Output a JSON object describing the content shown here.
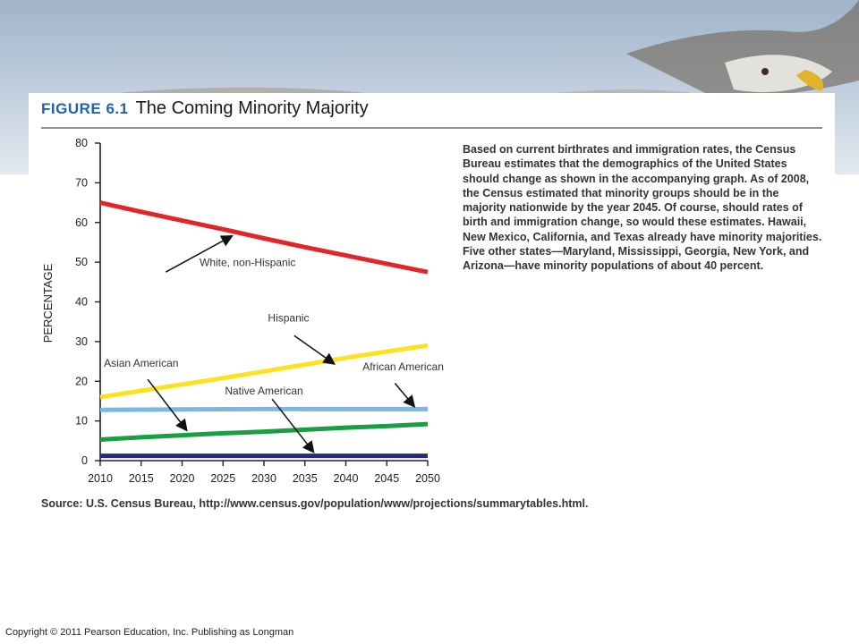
{
  "figure": {
    "number": "FIGURE 6.1",
    "title": "The Coming Minority Majority",
    "description": "Based on current birthrates and immigration rates, the Census Bureau estimates that the demographics of the United States should change as shown in the accompanying graph. As of 2008, the Census estimated that minority groups should be in the majority nationwide by the year 2045. Of course, should rates of birth and immigration change, so would these estimates. Hawaii, New Mexico, California, and Texas already have minority majorities. Five other states—Maryland, Mississippi, Georgia, New York, and Arizona—have minority populations of about 40 percent.",
    "source": "Source: U.S. Census Bureau, http://www.census.gov/population/www/projections/summarytables.html."
  },
  "copyright": "Copyright © 2011 Pearson Education, Inc. Publishing as Longman",
  "chart_data": {
    "type": "line",
    "ylabel": "PERCENTAGE",
    "xlabel": "",
    "x": [
      2010,
      2015,
      2020,
      2025,
      2030,
      2035,
      2040,
      2045,
      2050
    ],
    "xlim": [
      2010,
      2050
    ],
    "ylim": [
      0,
      80
    ],
    "yticks": [
      0,
      10,
      20,
      30,
      40,
      50,
      60,
      70,
      80
    ],
    "grid": false,
    "series": [
      {
        "name": "White, non-Hispanic",
        "color": "#e3242b",
        "values": [
          65.0,
          62.7,
          60.5,
          58.3,
          56.0,
          53.8,
          51.7,
          49.6,
          47.5
        ]
      },
      {
        "name": "Hispanic",
        "color": "#ffe21f",
        "values": [
          16.0,
          17.6,
          19.2,
          20.8,
          22.5,
          24.2,
          25.9,
          27.5,
          29.0
        ]
      },
      {
        "name": "African American",
        "color": "#7ab8e4",
        "values": [
          12.8,
          12.85,
          12.9,
          12.95,
          13.0,
          13.0,
          13.0,
          13.0,
          13.0
        ]
      },
      {
        "name": "Asian American",
        "color": "#1a9e43",
        "values": [
          5.3,
          5.9,
          6.4,
          6.9,
          7.3,
          7.8,
          8.3,
          8.7,
          9.2
        ]
      },
      {
        "name": "Native American",
        "color": "#242a78",
        "values": [
          1.2,
          1.2,
          1.2,
          1.2,
          1.2,
          1.2,
          1.2,
          1.2,
          1.2
        ]
      }
    ],
    "annotations": [
      {
        "text": "White, non-Hispanic",
        "arrow_from": [
          2018,
          47.5
        ],
        "arrow_to": [
          2026,
          56.5
        ],
        "text_at": [
          2028,
          49
        ]
      },
      {
        "text": "Hispanic",
        "arrow_from": [
          2033.7,
          31.5
        ],
        "arrow_to": [
          2038.5,
          24.5
        ],
        "text_at": [
          2033,
          35
        ]
      },
      {
        "text": "African American",
        "arrow_from": [
          2046,
          19.5
        ],
        "arrow_to": [
          2048.3,
          13.8
        ],
        "text_at": [
          2047,
          22.8
        ]
      },
      {
        "text": "Asian American",
        "arrow_from": [
          2015.8,
          20.5
        ],
        "arrow_to": [
          2020.5,
          7.8
        ],
        "text_at": [
          2015,
          23.7
        ]
      },
      {
        "text": "Native American",
        "arrow_from": [
          2031,
          15.5
        ],
        "arrow_to": [
          2036,
          2.3
        ],
        "text_at": [
          2030,
          16.7
        ]
      }
    ]
  }
}
